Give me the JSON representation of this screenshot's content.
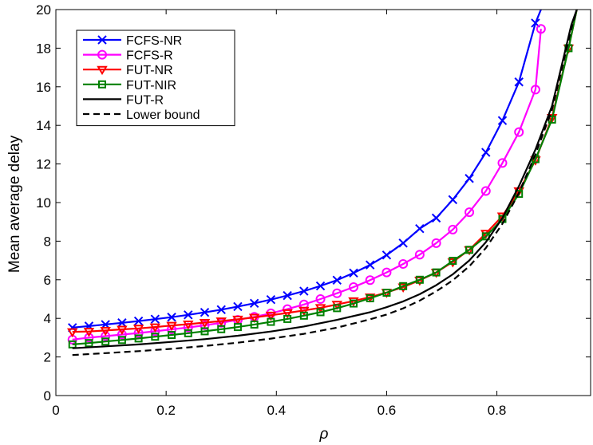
{
  "chart_data": {
    "type": "line",
    "xlabel": "ρ",
    "ylabel": "Mean average delay",
    "xlim": [
      0,
      0.97
    ],
    "ylim": [
      0,
      20
    ],
    "xticks": [
      0,
      0.2,
      0.4,
      0.6,
      0.8
    ],
    "yticks": [
      0,
      2,
      4,
      6,
      8,
      10,
      12,
      14,
      16,
      18,
      20
    ],
    "grid": false,
    "legend_position": "top-left",
    "series": [
      {
        "name": "FCFS-NR",
        "color": "#0000ff",
        "marker": "x",
        "dash": "solid",
        "x": [
          0.03,
          0.06,
          0.09,
          0.12,
          0.15,
          0.18,
          0.21,
          0.24,
          0.27,
          0.3,
          0.33,
          0.36,
          0.39,
          0.42,
          0.45,
          0.48,
          0.51,
          0.54,
          0.57,
          0.6,
          0.63,
          0.66,
          0.69,
          0.72,
          0.75,
          0.78,
          0.81,
          0.84,
          0.87,
          0.88
        ],
        "y": [
          3.52,
          3.6,
          3.68,
          3.77,
          3.86,
          3.96,
          4.06,
          4.18,
          4.31,
          4.45,
          4.61,
          4.78,
          4.97,
          5.18,
          5.41,
          5.68,
          5.98,
          6.35,
          6.77,
          7.28,
          7.9,
          8.65,
          9.2,
          10.15,
          11.25,
          12.6,
          14.25,
          16.25,
          19.3,
          20.0
        ]
      },
      {
        "name": "FCFS-R",
        "color": "#ff00ff",
        "marker": "o",
        "dash": "solid",
        "x": [
          0.03,
          0.06,
          0.09,
          0.12,
          0.15,
          0.18,
          0.21,
          0.24,
          0.27,
          0.3,
          0.33,
          0.36,
          0.39,
          0.42,
          0.45,
          0.48,
          0.51,
          0.54,
          0.57,
          0.6,
          0.63,
          0.66,
          0.69,
          0.72,
          0.75,
          0.78,
          0.81,
          0.84,
          0.87,
          0.88
        ],
        "y": [
          2.9,
          3.0,
          3.08,
          3.16,
          3.24,
          3.33,
          3.43,
          3.53,
          3.64,
          3.77,
          3.92,
          4.08,
          4.26,
          4.48,
          4.72,
          5.0,
          5.3,
          5.62,
          5.98,
          6.38,
          6.82,
          7.3,
          7.9,
          8.6,
          9.5,
          10.6,
          12.05,
          13.65,
          15.85,
          19.0
        ]
      },
      {
        "name": "FUT-NR",
        "color": "#ff0000",
        "marker": "triangle-down",
        "dash": "solid",
        "x": [
          0.03,
          0.06,
          0.09,
          0.12,
          0.15,
          0.18,
          0.21,
          0.24,
          0.27,
          0.3,
          0.33,
          0.36,
          0.39,
          0.42,
          0.45,
          0.48,
          0.51,
          0.54,
          0.57,
          0.6,
          0.63,
          0.66,
          0.69,
          0.72,
          0.75,
          0.78,
          0.81,
          0.84,
          0.87,
          0.9,
          0.93,
          0.945
        ],
        "y": [
          3.3,
          3.32,
          3.37,
          3.43,
          3.48,
          3.55,
          3.63,
          3.7,
          3.78,
          3.86,
          3.95,
          4.05,
          4.16,
          4.28,
          4.41,
          4.55,
          4.72,
          4.9,
          5.1,
          5.34,
          5.62,
          5.97,
          6.38,
          6.92,
          7.55,
          8.4,
          9.3,
          10.6,
          12.2,
          14.4,
          18.0,
          20.0
        ]
      },
      {
        "name": "FUT-NIR",
        "color": "#008000",
        "marker": "square",
        "dash": "solid",
        "x": [
          0.03,
          0.06,
          0.09,
          0.12,
          0.15,
          0.18,
          0.21,
          0.24,
          0.27,
          0.3,
          0.33,
          0.36,
          0.39,
          0.42,
          0.45,
          0.48,
          0.51,
          0.54,
          0.57,
          0.6,
          0.63,
          0.66,
          0.69,
          0.72,
          0.75,
          0.78,
          0.81,
          0.84,
          0.87,
          0.9,
          0.93,
          0.945
        ],
        "y": [
          2.65,
          2.72,
          2.8,
          2.88,
          2.96,
          3.05,
          3.14,
          3.23,
          3.33,
          3.44,
          3.55,
          3.68,
          3.82,
          3.97,
          4.14,
          4.32,
          4.53,
          4.77,
          5.04,
          5.33,
          5.67,
          6.0,
          6.38,
          6.98,
          7.55,
          8.25,
          9.15,
          10.45,
          12.25,
          14.3,
          18.0,
          20.0
        ]
      },
      {
        "name": "FUT-R",
        "color": "#000000",
        "marker": "none",
        "dash": "solid",
        "x": [
          0.03,
          0.09,
          0.15,
          0.21,
          0.27,
          0.33,
          0.39,
          0.45,
          0.51,
          0.57,
          0.6,
          0.63,
          0.66,
          0.69,
          0.72,
          0.75,
          0.78,
          0.81,
          0.84,
          0.87,
          0.9,
          0.92,
          0.935,
          0.945
        ],
        "y": [
          2.45,
          2.55,
          2.65,
          2.78,
          2.92,
          3.1,
          3.32,
          3.58,
          3.92,
          4.32,
          4.58,
          4.88,
          5.25,
          5.72,
          6.28,
          7.0,
          7.95,
          9.2,
          10.85,
          12.75,
          15.0,
          17.4,
          19.2,
          20.0
        ]
      },
      {
        "name": "Lower bound",
        "color": "#000000",
        "marker": "none",
        "dash": "dashed",
        "x": [
          0.03,
          0.09,
          0.15,
          0.21,
          0.27,
          0.33,
          0.39,
          0.45,
          0.51,
          0.57,
          0.6,
          0.63,
          0.66,
          0.69,
          0.72,
          0.75,
          0.78,
          0.81,
          0.84,
          0.87,
          0.9,
          0.92,
          0.935,
          0.945
        ],
        "y": [
          2.1,
          2.2,
          2.3,
          2.42,
          2.57,
          2.74,
          2.95,
          3.2,
          3.52,
          3.95,
          4.2,
          4.52,
          4.92,
          5.4,
          5.97,
          6.7,
          7.65,
          8.9,
          10.5,
          12.5,
          14.8,
          17.2,
          19.0,
          20.0
        ]
      }
    ]
  }
}
